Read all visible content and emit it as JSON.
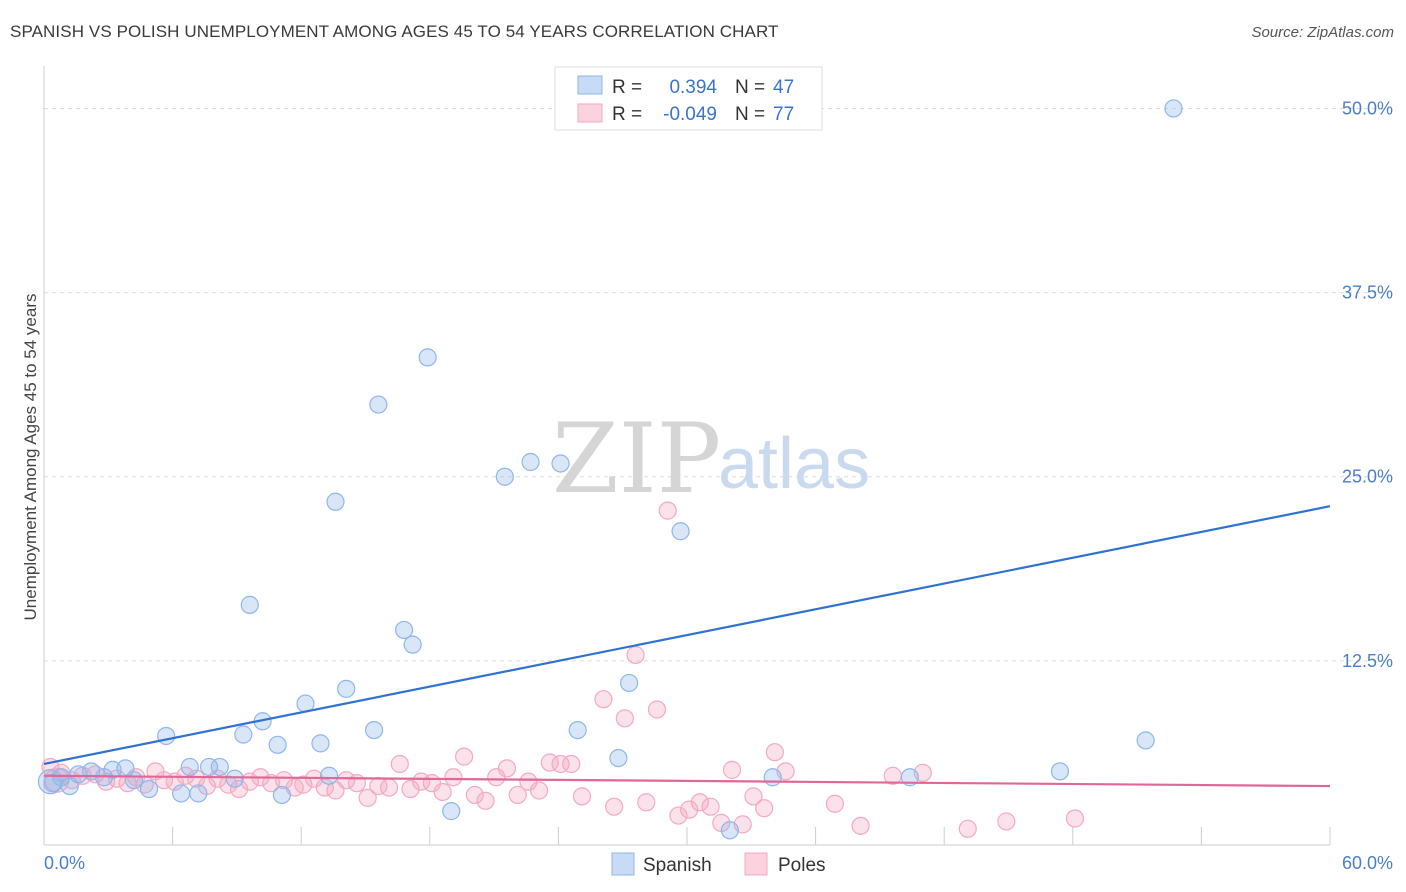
{
  "title": "SPANISH VS POLISH UNEMPLOYMENT AMONG AGES 45 TO 54 YEARS CORRELATION CHART",
  "source": "Source: ZipAtlas.com",
  "watermark": {
    "part1": "ZIP",
    "part2": "atlas"
  },
  "chart_data": {
    "type": "scatter",
    "title": "SPANISH VS POLISH UNEMPLOYMENT AMONG AGES 45 TO 54 YEARS CORRELATION CHART",
    "xlabel": "",
    "ylabel": "Unemployment Among Ages 45 to 54 years",
    "xlim": [
      0,
      60
    ],
    "ylim": [
      0,
      52
    ],
    "x_tick_labels": [
      "0.0%",
      "60.0%"
    ],
    "y_ticks": [
      12.5,
      25.0,
      37.5,
      50.0
    ],
    "y_tick_labels": [
      "12.5%",
      "25.0%",
      "37.5%",
      "50.0%"
    ],
    "grid": true,
    "legend_position": "top-center",
    "series": [
      {
        "name": "Spanish",
        "color": "#8fb6ea",
        "line_color": "#2f72d1",
        "R": "0.394",
        "N": "47",
        "trend": [
          [
            0,
            5.5
          ],
          [
            60,
            23.0
          ]
        ],
        "points": [
          [
            0.4,
            4.2
          ],
          [
            0.8,
            4.6
          ],
          [
            1.2,
            4.0
          ],
          [
            1.6,
            4.8
          ],
          [
            2.2,
            5.0
          ],
          [
            2.8,
            4.6
          ],
          [
            3.2,
            5.1
          ],
          [
            3.8,
            5.2
          ],
          [
            4.2,
            4.4
          ],
          [
            4.9,
            3.8
          ],
          [
            5.7,
            7.4
          ],
          [
            6.4,
            3.5
          ],
          [
            6.8,
            5.3
          ],
          [
            7.2,
            3.5
          ],
          [
            7.7,
            5.3
          ],
          [
            8.2,
            5.3
          ],
          [
            8.9,
            4.5
          ],
          [
            9.3,
            7.5
          ],
          [
            9.6,
            16.3
          ],
          [
            10.2,
            8.4
          ],
          [
            10.9,
            6.8
          ],
          [
            11.1,
            3.4
          ],
          [
            12.2,
            9.6
          ],
          [
            12.9,
            6.9
          ],
          [
            13.3,
            4.7
          ],
          [
            13.6,
            23.3
          ],
          [
            14.1,
            10.6
          ],
          [
            15.4,
            7.8
          ],
          [
            15.6,
            29.9
          ],
          [
            16.8,
            14.6
          ],
          [
            17.2,
            13.6
          ],
          [
            17.9,
            33.1
          ],
          [
            19.0,
            2.3
          ],
          [
            21.5,
            25.0
          ],
          [
            22.7,
            26.0
          ],
          [
            24.1,
            25.9
          ],
          [
            24.9,
            7.8
          ],
          [
            26.8,
            5.9
          ],
          [
            27.3,
            11.0
          ],
          [
            29.7,
            21.3
          ],
          [
            32.0,
            1.0
          ],
          [
            34.0,
            4.6
          ],
          [
            40.4,
            4.6
          ],
          [
            47.4,
            5.0
          ],
          [
            51.4,
            7.1
          ],
          [
            52.7,
            50.0
          ],
          [
            0.3,
            4.3
          ]
        ]
      },
      {
        "name": "Poles",
        "color": "#f4a9c0",
        "line_color": "#e0679a",
        "R": "-0.049",
        "N": "77",
        "trend": [
          [
            0,
            4.7
          ],
          [
            60,
            4.0
          ]
        ],
        "points": [
          [
            0.3,
            5.3
          ],
          [
            0.8,
            4.9
          ],
          [
            1.3,
            4.4
          ],
          [
            1.8,
            4.7
          ],
          [
            2.4,
            4.8
          ],
          [
            2.9,
            4.3
          ],
          [
            3.4,
            4.5
          ],
          [
            3.9,
            4.2
          ],
          [
            4.3,
            4.6
          ],
          [
            4.7,
            4.1
          ],
          [
            5.2,
            5.0
          ],
          [
            5.6,
            4.4
          ],
          [
            6.1,
            4.3
          ],
          [
            6.6,
            4.7
          ],
          [
            7.1,
            4.5
          ],
          [
            7.6,
            4.0
          ],
          [
            8.1,
            4.5
          ],
          [
            8.6,
            4.1
          ],
          [
            9.1,
            3.8
          ],
          [
            9.6,
            4.3
          ],
          [
            10.1,
            4.6
          ],
          [
            10.6,
            4.2
          ],
          [
            11.2,
            4.4
          ],
          [
            11.7,
            3.9
          ],
          [
            12.1,
            4.1
          ],
          [
            12.6,
            4.5
          ],
          [
            13.1,
            3.9
          ],
          [
            13.6,
            3.7
          ],
          [
            14.1,
            4.4
          ],
          [
            14.6,
            4.2
          ],
          [
            15.1,
            3.2
          ],
          [
            15.6,
            4.0
          ],
          [
            16.1,
            3.9
          ],
          [
            16.6,
            5.5
          ],
          [
            17.1,
            3.8
          ],
          [
            17.6,
            4.3
          ],
          [
            18.1,
            4.2
          ],
          [
            18.6,
            3.6
          ],
          [
            19.1,
            4.6
          ],
          [
            19.6,
            6.0
          ],
          [
            20.1,
            3.4
          ],
          [
            20.6,
            3.0
          ],
          [
            21.1,
            4.6
          ],
          [
            21.6,
            5.2
          ],
          [
            22.1,
            3.4
          ],
          [
            22.6,
            4.3
          ],
          [
            23.1,
            3.7
          ],
          [
            23.6,
            5.6
          ],
          [
            24.1,
            5.5
          ],
          [
            24.6,
            5.5
          ],
          [
            25.1,
            3.3
          ],
          [
            26.1,
            9.9
          ],
          [
            26.6,
            2.6
          ],
          [
            27.1,
            8.6
          ],
          [
            27.6,
            12.9
          ],
          [
            28.1,
            2.9
          ],
          [
            28.6,
            9.2
          ],
          [
            29.1,
            22.7
          ],
          [
            29.6,
            2.0
          ],
          [
            30.1,
            2.4
          ],
          [
            30.6,
            2.9
          ],
          [
            31.1,
            2.6
          ],
          [
            31.6,
            1.5
          ],
          [
            32.1,
            5.1
          ],
          [
            32.6,
            1.4
          ],
          [
            33.1,
            3.3
          ],
          [
            33.6,
            2.5
          ],
          [
            34.1,
            6.3
          ],
          [
            34.6,
            5.0
          ],
          [
            36.9,
            2.8
          ],
          [
            38.1,
            1.3
          ],
          [
            39.6,
            4.7
          ],
          [
            41.0,
            4.9
          ],
          [
            43.1,
            1.1
          ],
          [
            44.9,
            1.6
          ],
          [
            48.1,
            1.8
          ],
          [
            0.6,
            4.4
          ]
        ]
      }
    ]
  }
}
